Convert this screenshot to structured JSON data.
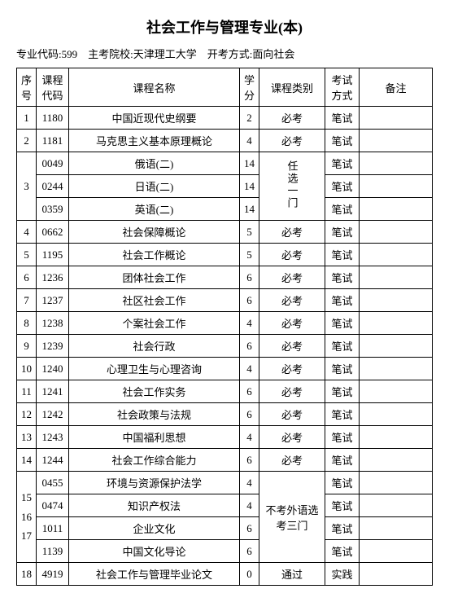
{
  "title": "社会工作与管理专业(本)",
  "subtitle": "专业代码:599　主考院校:天津理工大学　开考方式:面向社会",
  "headers": {
    "seq": "序号",
    "code": "课程代码",
    "name": "课程名称",
    "credit": "学分",
    "type": "课程类别",
    "method": "考试方式",
    "note": "备注"
  },
  "rows": [
    {
      "seq": "1",
      "code": "1180",
      "name": "中国近现代史纲要",
      "credit": "2",
      "type": "必考",
      "method": "笔试",
      "note": ""
    },
    {
      "seq": "2",
      "code": "1181",
      "name": "马克思主义基本原理概论",
      "credit": "4",
      "type": "必考",
      "method": "笔试",
      "note": ""
    }
  ],
  "group3": {
    "seq": "3",
    "type": "任选一门",
    "items": [
      {
        "code": "0049",
        "name": "俄语(二)",
        "credit": "14",
        "method": "笔试",
        "note": ""
      },
      {
        "code": "0244",
        "name": "日语(二)",
        "credit": "14",
        "method": "笔试",
        "note": ""
      },
      {
        "code": "0359",
        "name": "英语(二)",
        "credit": "14",
        "method": "笔试",
        "note": ""
      }
    ]
  },
  "rows2": [
    {
      "seq": "4",
      "code": "0662",
      "name": "社会保障概论",
      "credit": "5",
      "type": "必考",
      "method": "笔试",
      "note": ""
    },
    {
      "seq": "5",
      "code": "1195",
      "name": "社会工作概论",
      "credit": "5",
      "type": "必考",
      "method": "笔试",
      "note": ""
    },
    {
      "seq": "6",
      "code": "1236",
      "name": "团体社会工作",
      "credit": "6",
      "type": "必考",
      "method": "笔试",
      "note": ""
    },
    {
      "seq": "7",
      "code": "1237",
      "name": "社区社会工作",
      "credit": "6",
      "type": "必考",
      "method": "笔试",
      "note": ""
    },
    {
      "seq": "8",
      "code": "1238",
      "name": "个案社会工作",
      "credit": "4",
      "type": "必考",
      "method": "笔试",
      "note": ""
    },
    {
      "seq": "9",
      "code": "1239",
      "name": "社会行政",
      "credit": "6",
      "type": "必考",
      "method": "笔试",
      "note": ""
    },
    {
      "seq": "10",
      "code": "1240",
      "name": "心理卫生与心理咨询",
      "credit": "4",
      "type": "必考",
      "method": "笔试",
      "note": ""
    },
    {
      "seq": "11",
      "code": "1241",
      "name": "社会工作实务",
      "credit": "6",
      "type": "必考",
      "method": "笔试",
      "note": ""
    },
    {
      "seq": "12",
      "code": "1242",
      "name": "社会政策与法规",
      "credit": "6",
      "type": "必考",
      "method": "笔试",
      "note": ""
    },
    {
      "seq": "13",
      "code": "1243",
      "name": "中国福利思想",
      "credit": "4",
      "type": "必考",
      "method": "笔试",
      "note": ""
    },
    {
      "seq": "14",
      "code": "1244",
      "name": "社会工作综合能力",
      "credit": "6",
      "type": "必考",
      "method": "笔试",
      "note": ""
    }
  ],
  "group15": {
    "seq": "15\n16\n17",
    "type": "不考外语选考三门",
    "items": [
      {
        "code": "0455",
        "name": "环境与资源保护法学",
        "credit": "4",
        "method": "笔试",
        "note": ""
      },
      {
        "code": "0474",
        "name": "知识产权法",
        "credit": "4",
        "method": "笔试",
        "note": ""
      },
      {
        "code": "1011",
        "name": "企业文化",
        "credit": "6",
        "method": "笔试",
        "note": ""
      },
      {
        "code": "1139",
        "name": "中国文化导论",
        "credit": "6",
        "method": "笔试",
        "note": ""
      }
    ]
  },
  "rows3": [
    {
      "seq": "18",
      "code": "4919",
      "name": "社会工作与管理毕业论文",
      "credit": "0",
      "type": "通过",
      "method": "实践",
      "note": ""
    }
  ]
}
